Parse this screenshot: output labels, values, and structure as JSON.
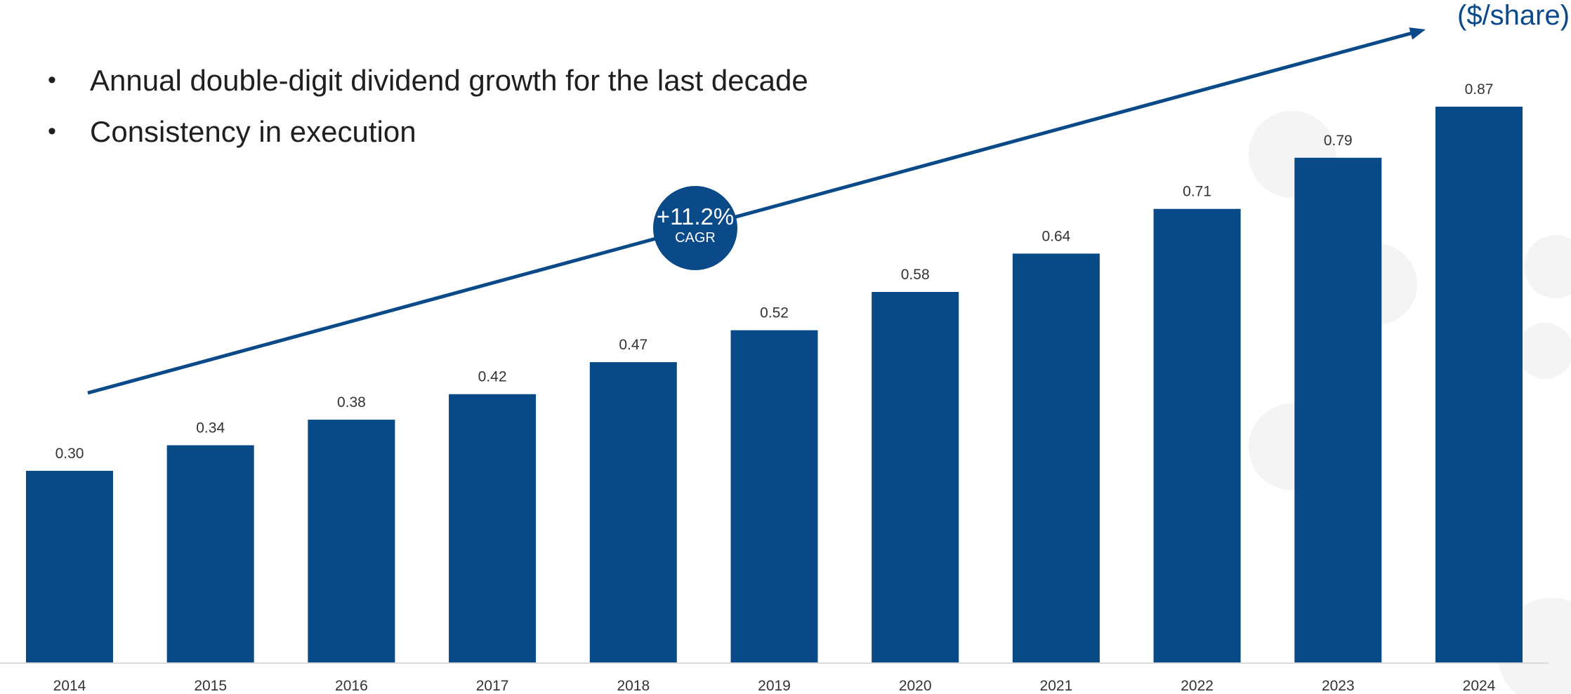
{
  "unit_label": "($/share)",
  "bullets": [
    "Annual double-digit dividend growth for the last decade",
    "Consistency in execution"
  ],
  "bullet_symbol": "•",
  "cagr": {
    "value": "+11.2%",
    "label": "CAGR"
  },
  "colors": {
    "bar": "#074a87",
    "trend_line": "#0b4a89",
    "text": "#333333",
    "unit_label": "#0a4a8a"
  },
  "chart_data": {
    "type": "bar",
    "categories": [
      "2014",
      "2015",
      "2016",
      "2017",
      "2018",
      "2019",
      "2020",
      "2021",
      "2022",
      "2023",
      "2024"
    ],
    "values": [
      0.3,
      0.34,
      0.38,
      0.42,
      0.47,
      0.52,
      0.58,
      0.64,
      0.71,
      0.79,
      0.87
    ],
    "data_labels": [
      "0.30",
      "0.34",
      "0.38",
      "0.42",
      "0.47",
      "0.52",
      "0.58",
      "0.64",
      "0.71",
      "0.79",
      "0.87"
    ],
    "title": "",
    "xlabel": "",
    "ylabel": "($/share)",
    "ylim": [
      0,
      0.87
    ],
    "grid": false,
    "legend": "none"
  }
}
